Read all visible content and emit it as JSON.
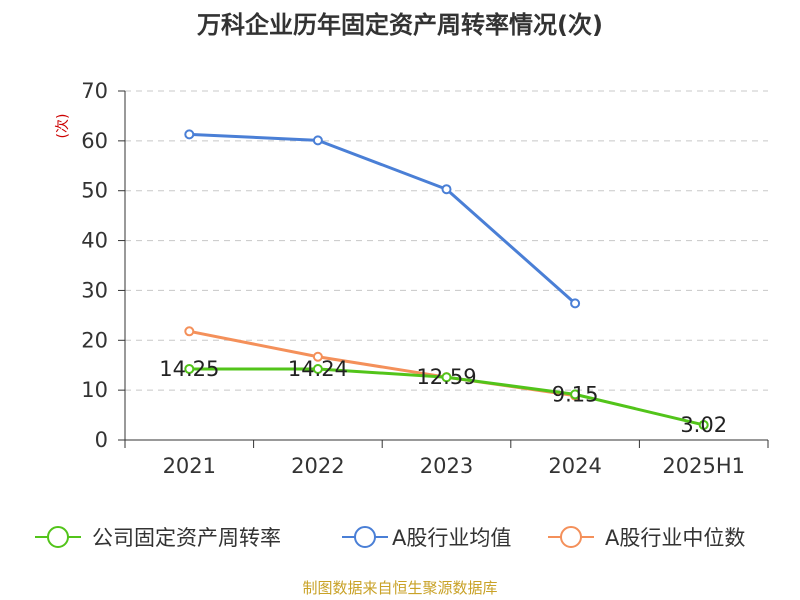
{
  "title": "万科企业历年固定资产周转率情况(次)",
  "source": "制图数据来自恒生聚源数据库",
  "chart_data": {
    "type": "line",
    "title": "万科企业历年固定资产周转率情况(次)",
    "ylabel": "(次)",
    "xlabel": "",
    "categories": [
      "2021",
      "2022",
      "2023",
      "2024",
      "2025H1"
    ],
    "ylim": [
      0,
      70
    ],
    "yticks": [
      0,
      10,
      20,
      30,
      40,
      50,
      60,
      70
    ],
    "grid": true,
    "legend_position": "bottom",
    "series": [
      {
        "name": "公司固定资产周转率",
        "color": "#52c41a",
        "values": [
          14.25,
          14.24,
          12.59,
          9.15,
          3.02
        ],
        "labels": [
          "14.25",
          "14.24",
          "12.59",
          "9.15",
          "3.02"
        ]
      },
      {
        "name": "A股行业均值",
        "color": "#4a7fd6",
        "values": [
          61.3,
          60.1,
          50.3,
          27.4,
          null
        ]
      },
      {
        "name": "A股行业中位数",
        "color": "#f4905a",
        "values": [
          21.8,
          16.7,
          12.6,
          8.9,
          null
        ]
      }
    ]
  }
}
